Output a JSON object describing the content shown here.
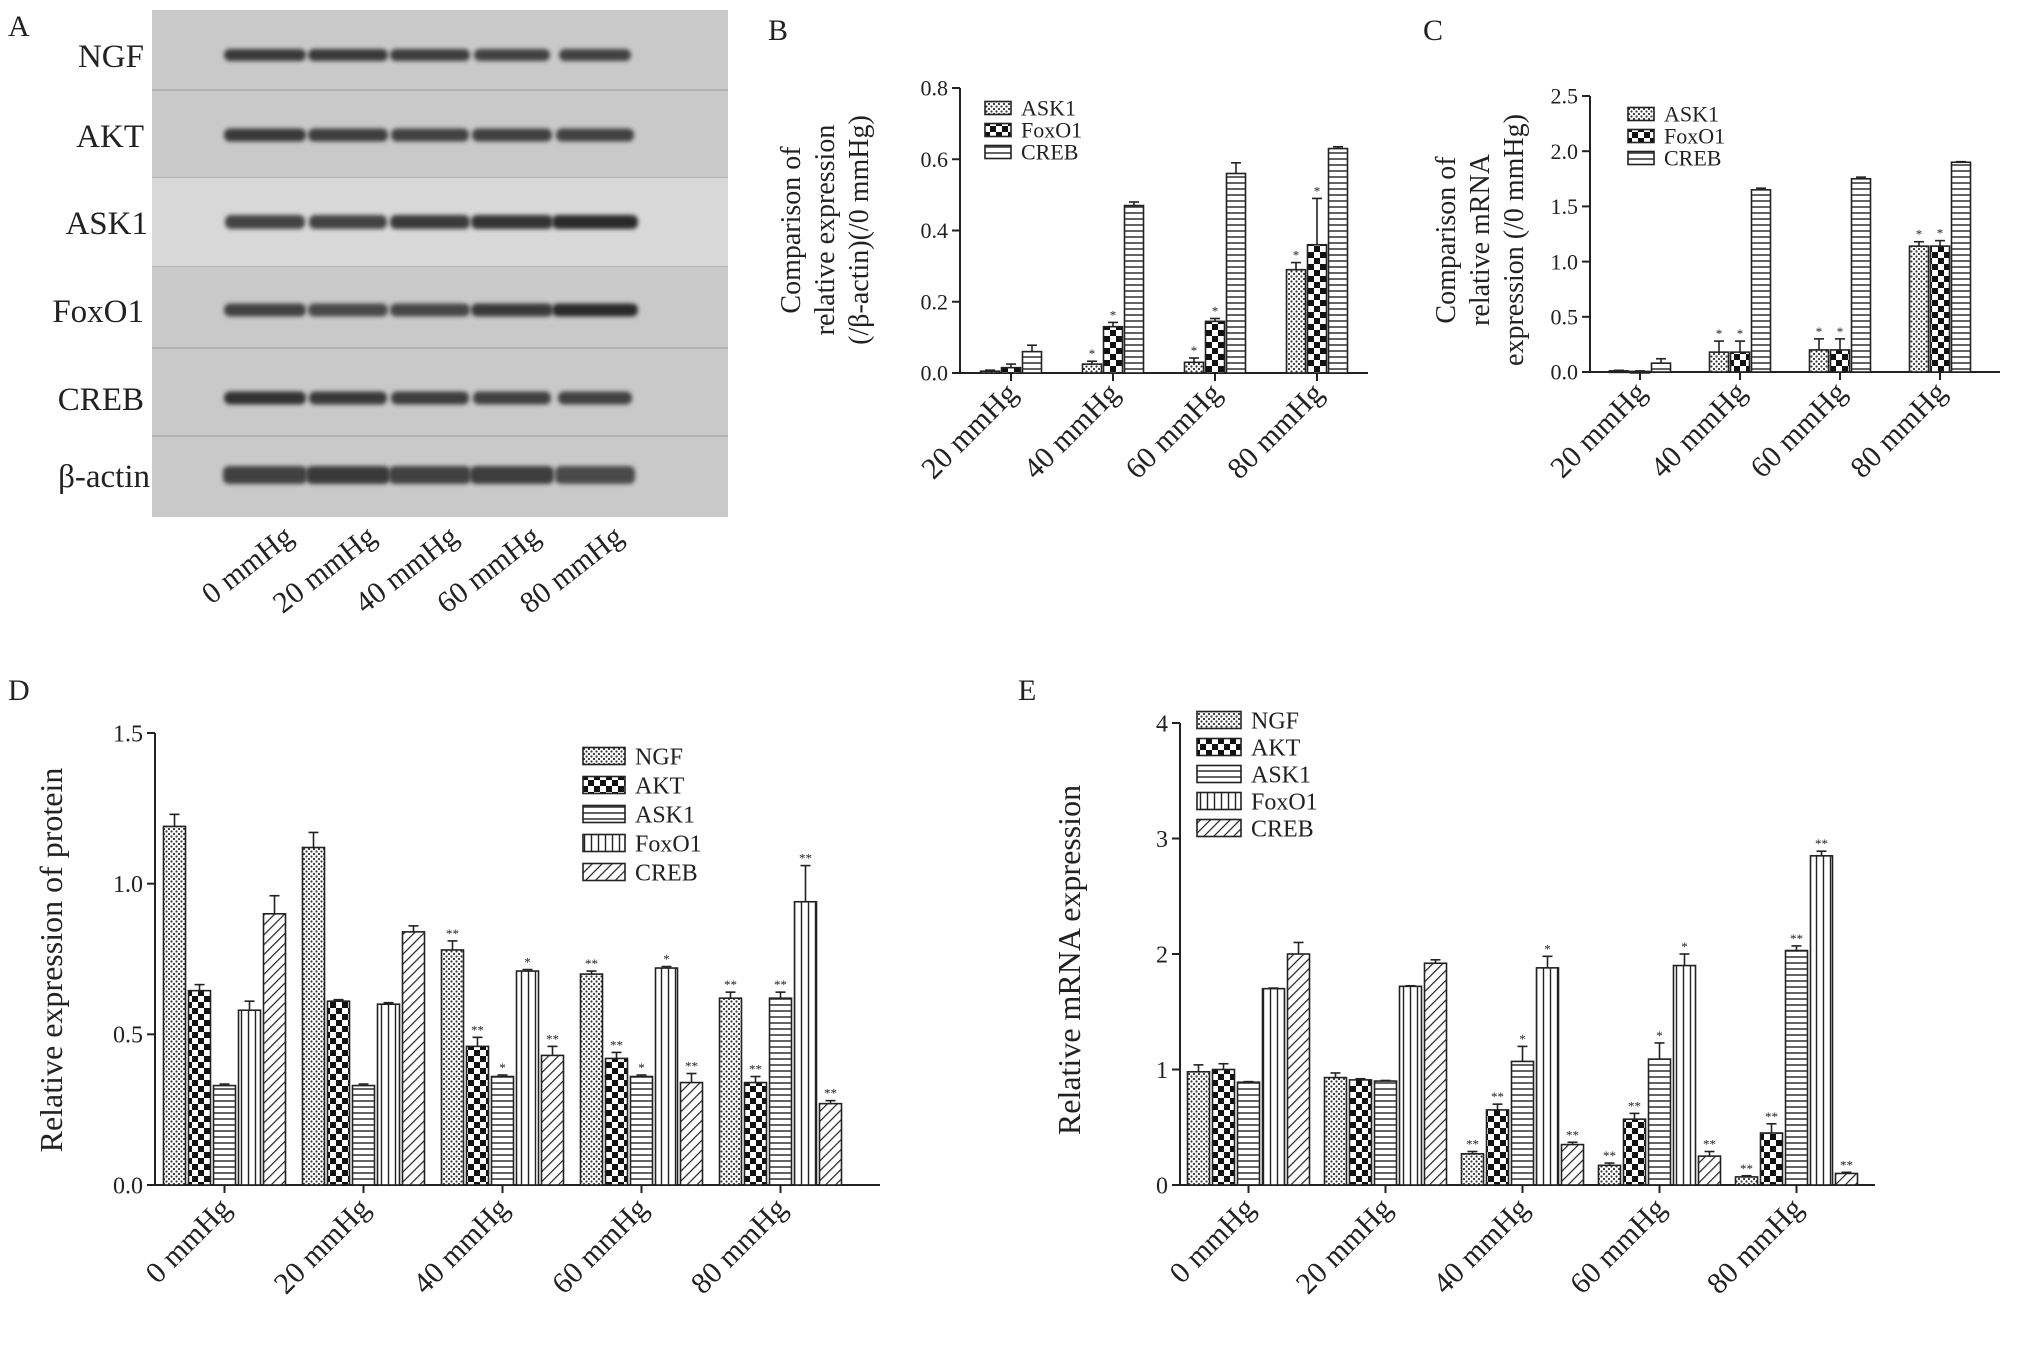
{
  "colors": {
    "ink": "#222222",
    "blot_bg": "#c9c9c9",
    "band": "#2a2a2a"
  },
  "panels": {
    "A": {
      "label": "A",
      "rows": [
        "NGF",
        "AKT",
        "ASK1",
        "FoxO1",
        "CREB",
        "β-actin"
      ],
      "lanes": [
        "0 mmHg",
        "20 mmHg",
        "40 mmHg",
        "60 mmHg",
        "80 mmHg"
      ]
    },
    "B": {
      "label": "B"
    },
    "C": {
      "label": "C"
    },
    "D": {
      "label": "D"
    },
    "E": {
      "label": "E"
    }
  },
  "chart_data": [
    {
      "panel": "B",
      "type": "bar",
      "ylabel": [
        "Comparison of",
        "relative expression",
        "(/β-actin)(/0 mmHg)"
      ],
      "categories": [
        "20 mmHg",
        "40 mmHg",
        "60 mmHg",
        "80 mmHg"
      ],
      "ylim": [
        0,
        0.8
      ],
      "yticks": [
        "0.0",
        "0.2",
        "0.4",
        "0.6",
        "0.8"
      ],
      "yticks_values": [
        0,
        0.2,
        0.4,
        0.6,
        0.8
      ],
      "legend": "top-left",
      "series": [
        {
          "name": "ASK1",
          "pattern": "dots",
          "values": [
            0.005,
            0.025,
            0.03,
            0.29
          ],
          "errors": [
            0.003,
            0.008,
            0.012,
            0.02
          ]
        },
        {
          "name": "FoxO1",
          "pattern": "check",
          "values": [
            0.015,
            0.13,
            0.145,
            0.36
          ],
          "errors": [
            0.01,
            0.012,
            0.008,
            0.13
          ]
        },
        {
          "name": "CREB",
          "pattern": "hlines",
          "values": [
            0.06,
            0.47,
            0.56,
            0.63
          ],
          "errors": [
            0.018,
            0.01,
            0.03,
            0.005
          ]
        }
      ],
      "markers": [
        [
          "",
          "",
          ""
        ],
        [
          "*",
          "*",
          ""
        ],
        [
          "*",
          "*",
          ""
        ],
        [
          "*",
          "*",
          ""
        ]
      ]
    },
    {
      "panel": "C",
      "type": "bar",
      "ylabel": [
        "Comparison of",
        "relative mRNA",
        "expression (/0 mmHg)"
      ],
      "categories": [
        "20 mmHg",
        "40 mmHg",
        "60 mmHg",
        "80 mmHg"
      ],
      "ylim": [
        0,
        2.5
      ],
      "yticks": [
        "0.0",
        "0.5",
        "1.0",
        "1.5",
        "2.0",
        "2.5"
      ],
      "yticks_values": [
        0,
        0.5,
        1.0,
        1.5,
        2.0,
        2.5
      ],
      "legend": "top-left",
      "series": [
        {
          "name": "ASK1",
          "pattern": "dots",
          "values": [
            0.01,
            0.18,
            0.2,
            1.14
          ],
          "errors": [
            0.005,
            0.1,
            0.1,
            0.04
          ]
        },
        {
          "name": "FoxO1",
          "pattern": "check",
          "values": [
            0.005,
            0.18,
            0.2,
            1.14
          ],
          "errors": [
            0.005,
            0.1,
            0.1,
            0.05
          ]
        },
        {
          "name": "CREB",
          "pattern": "hlines",
          "values": [
            0.08,
            1.65,
            1.75,
            1.9
          ],
          "errors": [
            0.04,
            0.015,
            0.015,
            0.005
          ]
        }
      ],
      "markers": [
        [
          "",
          "",
          ""
        ],
        [
          "*",
          "*",
          ""
        ],
        [
          "*",
          "*",
          ""
        ],
        [
          "*",
          "*",
          ""
        ]
      ]
    },
    {
      "panel": "D",
      "type": "bar",
      "ylabel": [
        "Relative expression of protein"
      ],
      "categories": [
        "0 mmHg",
        "20 mmHg",
        "40 mmHg",
        "60 mmHg",
        "80 mmHg"
      ],
      "ylim": [
        0,
        1.5
      ],
      "yticks": [
        "0.0",
        "0.5",
        "1.0",
        "1.5"
      ],
      "yticks_values": [
        0,
        0.5,
        1.0,
        1.5
      ],
      "legend": "top-right",
      "series": [
        {
          "name": "NGF",
          "pattern": "dots",
          "values": [
            1.19,
            1.12,
            0.78,
            0.7,
            0.62
          ],
          "errors": [
            0.04,
            0.05,
            0.03,
            0.01,
            0.02
          ]
        },
        {
          "name": "AKT",
          "pattern": "check",
          "values": [
            0.645,
            0.61,
            0.46,
            0.42,
            0.34
          ],
          "errors": [
            0.02,
            0.005,
            0.03,
            0.02,
            0.02
          ]
        },
        {
          "name": "ASK1",
          "pattern": "hlines",
          "values": [
            0.33,
            0.33,
            0.36,
            0.36,
            0.62
          ],
          "errors": [
            0.005,
            0.005,
            0.005,
            0.005,
            0.02
          ]
        },
        {
          "name": "FoxO1",
          "pattern": "vlines",
          "values": [
            0.58,
            0.6,
            0.71,
            0.72,
            0.94
          ],
          "errors": [
            0.03,
            0.005,
            0.005,
            0.005,
            0.12
          ]
        },
        {
          "name": "CREB",
          "pattern": "diag",
          "values": [
            0.9,
            0.84,
            0.43,
            0.34,
            0.27
          ],
          "errors": [
            0.06,
            0.02,
            0.03,
            0.03,
            0.01
          ]
        }
      ],
      "markers": [
        [
          "",
          "",
          "",
          "",
          ""
        ],
        [
          "",
          "",
          "",
          "",
          ""
        ],
        [
          "**",
          "**",
          "*",
          "*",
          "**"
        ],
        [
          "**",
          "**",
          "*",
          "*",
          "**"
        ],
        [
          "**",
          "**",
          "**",
          "**",
          "**"
        ]
      ]
    },
    {
      "panel": "E",
      "type": "bar",
      "ylabel": [
        "Relative mRNA expression"
      ],
      "categories": [
        "0 mmHg",
        "20 mmHg",
        "40 mmHg",
        "60 mmHg",
        "80 mmHg"
      ],
      "ylim": [
        0,
        4
      ],
      "yticks": [
        "0",
        "1",
        "2",
        "3",
        "4"
      ],
      "yticks_values": [
        0,
        1,
        2,
        3,
        4
      ],
      "legend": "top-left",
      "series": [
        {
          "name": "NGF",
          "pattern": "dots",
          "values": [
            0.98,
            0.93,
            0.27,
            0.17,
            0.07
          ],
          "errors": [
            0.06,
            0.04,
            0.02,
            0.02,
            0.01
          ]
        },
        {
          "name": "AKT",
          "pattern": "check",
          "values": [
            1.0,
            0.91,
            0.65,
            0.57,
            0.45
          ],
          "errors": [
            0.05,
            0.01,
            0.05,
            0.05,
            0.08
          ]
        },
        {
          "name": "ASK1",
          "pattern": "hlines",
          "values": [
            0.89,
            0.9,
            1.07,
            1.09,
            2.03
          ],
          "errors": [
            0.005,
            0.005,
            0.13,
            0.14,
            0.04
          ]
        },
        {
          "name": "FoxO1",
          "pattern": "vlines",
          "values": [
            1.7,
            1.72,
            1.88,
            1.9,
            2.85
          ],
          "errors": [
            0.005,
            0.005,
            0.1,
            0.1,
            0.04
          ]
        },
        {
          "name": "CREB",
          "pattern": "diag",
          "values": [
            2.0,
            1.92,
            0.35,
            0.25,
            0.1
          ],
          "errors": [
            0.1,
            0.03,
            0.02,
            0.04,
            0.01
          ]
        }
      ],
      "markers": [
        [
          "",
          "",
          "",
          "",
          ""
        ],
        [
          "",
          "",
          "",
          "",
          ""
        ],
        [
          "**",
          "**",
          "*",
          "*",
          "**"
        ],
        [
          "**",
          "**",
          "*",
          "*",
          "**"
        ],
        [
          "**",
          "**",
          "**",
          "**",
          "**"
        ]
      ]
    }
  ]
}
